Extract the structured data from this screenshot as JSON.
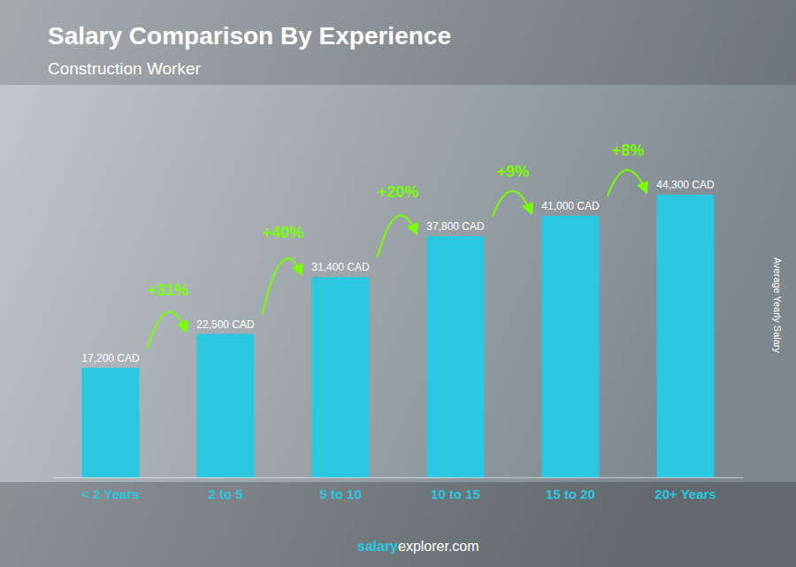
{
  "chart_data": {
    "type": "bar",
    "title": "Salary Comparison By Experience",
    "subtitle": "Construction Worker",
    "ylabel": "Average Yearly Salary",
    "categories": [
      "< 2 Years",
      "2 to 5",
      "5 to 10",
      "10 to 15",
      "15 to 20",
      "20+ Years"
    ],
    "values": [
      17200,
      22500,
      31400,
      37800,
      41000,
      44300
    ],
    "value_labels": [
      "17,200 CAD",
      "22,500 CAD",
      "31,400 CAD",
      "37,800 CAD",
      "41,000 CAD",
      "44,300 CAD"
    ],
    "data_labels": true,
    "annotations": [
      "+31%",
      "+40%",
      "+20%",
      "+9%",
      "+8%"
    ],
    "watermark": {
      "bold": "salary",
      "regular": "explorer.com"
    },
    "color": "#29c8e0",
    "ylim": [
      0,
      54000
    ],
    "tick_labels": "x",
    "grid": false
  }
}
